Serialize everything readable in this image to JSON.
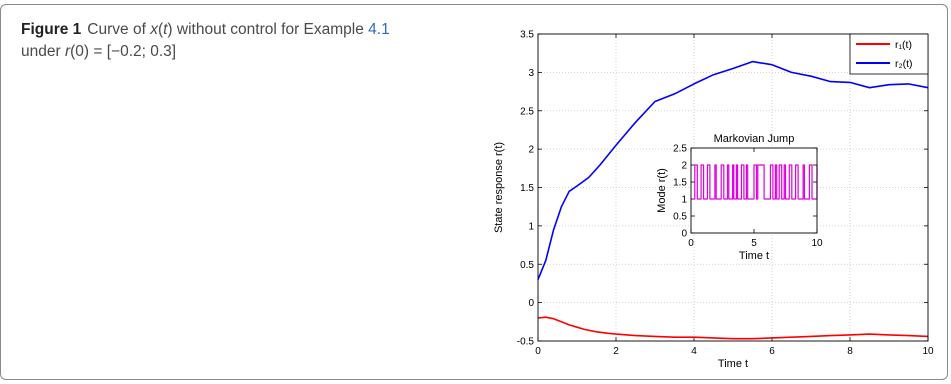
{
  "caption": {
    "label": "Figure 1",
    "text_1": "Curve of ",
    "var": "x",
    "text_2": "(",
    "var_t": "t",
    "text_3": ") without control for Example ",
    "ref": "4.1",
    "text_4": " under ",
    "var_r": "r",
    "text_5": "(0) = [−0.2; 0.3]"
  },
  "chart_data": [
    {
      "type": "line",
      "xlabel": "Time t",
      "ylabel": "State response r(t)",
      "xlim": [
        0,
        10
      ],
      "ylim": [
        -0.5,
        3.5
      ],
      "xticks": [
        "0",
        "2",
        "4",
        "6",
        "8",
        "10"
      ],
      "yticks": [
        "-0.5",
        "0",
        "0.5",
        "1",
        "1.5",
        "2",
        "2.5",
        "3",
        "3.5"
      ],
      "grid": true,
      "legend_position": "top-right",
      "colors": {
        "r1": "#ff0000",
        "r2": "#0000ff"
      },
      "series": [
        {
          "name": "r₁(t)",
          "key": "r1",
          "x": [
            0,
            0.2,
            0.4,
            0.6,
            0.8,
            1.0,
            1.2,
            1.5,
            1.8,
            2.0,
            2.5,
            3.0,
            3.5,
            4.0,
            4.5,
            5.0,
            5.5,
            6.0,
            6.5,
            7.0,
            7.5,
            8.0,
            8.5,
            9.0,
            9.5,
            10.0
          ],
          "y": [
            -0.2,
            -0.19,
            -0.21,
            -0.25,
            -0.29,
            -0.32,
            -0.35,
            -0.38,
            -0.4,
            -0.41,
            -0.43,
            -0.44,
            -0.45,
            -0.45,
            -0.46,
            -0.47,
            -0.47,
            -0.46,
            -0.45,
            -0.44,
            -0.43,
            -0.42,
            -0.41,
            -0.42,
            -0.43,
            -0.44
          ]
        },
        {
          "name": "r₂(t)",
          "key": "r2",
          "x": [
            0,
            0.2,
            0.4,
            0.6,
            0.8,
            1.0,
            1.3,
            1.6,
            2.0,
            2.5,
            3.0,
            3.5,
            4.0,
            4.5,
            5.0,
            5.5,
            6.0,
            6.5,
            7.0,
            7.5,
            8.0,
            8.5,
            9.0,
            9.5,
            10.0
          ],
          "y": [
            0.3,
            0.55,
            0.95,
            1.25,
            1.45,
            1.52,
            1.63,
            1.8,
            2.05,
            2.35,
            2.62,
            2.72,
            2.85,
            2.97,
            3.05,
            3.14,
            3.1,
            3.0,
            2.95,
            2.88,
            2.87,
            2.8,
            2.84,
            2.85,
            2.8
          ]
        }
      ]
    },
    {
      "type": "line",
      "title": "Markovian Jump",
      "xlabel": "Time t",
      "ylabel": "Mode r(t)",
      "xlim": [
        0,
        10
      ],
      "ylim": [
        0,
        2.5
      ],
      "xticks": [
        "0",
        "5",
        "10"
      ],
      "yticks": [
        "0",
        "0.5",
        "1",
        "1.5",
        "2",
        "2.5"
      ],
      "grid": false,
      "colors": {
        "mode": "#e000e0"
      },
      "series": [
        {
          "key": "mode",
          "step": true,
          "x": [
            0,
            0.3,
            0.5,
            0.8,
            1.0,
            1.3,
            1.5,
            1.9,
            2.0,
            2.4,
            2.6,
            2.9,
            3.0,
            3.3,
            3.4,
            3.6,
            3.7,
            4.0,
            4.2,
            4.4,
            4.5,
            5.0,
            5.2,
            5.3,
            5.8,
            6.3,
            6.5,
            6.7,
            6.8,
            7.0,
            7.2,
            7.4,
            7.5,
            7.8,
            8.0,
            8.3,
            8.5,
            8.9,
            9.0,
            9.4,
            9.6,
            10.0
          ],
          "y": [
            1,
            2,
            1,
            2,
            1,
            2,
            1,
            2,
            1,
            2,
            1,
            2,
            1,
            2,
            1,
            2,
            1,
            2,
            1,
            2,
            1,
            2,
            1,
            2,
            1,
            2,
            1,
            2,
            1,
            2,
            1,
            2,
            1,
            2,
            1,
            2,
            1,
            2,
            1,
            2,
            1,
            2
          ]
        }
      ]
    }
  ]
}
